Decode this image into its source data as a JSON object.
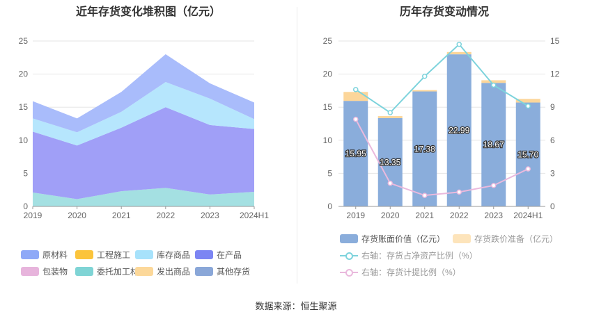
{
  "left_chart": {
    "title": "近年存货变化堆积图（亿元）",
    "legend": [
      {
        "label": "原材料",
        "color": "#8fa9f7"
      },
      {
        "label": "工程施工",
        "color": "#fbc43c"
      },
      {
        "label": "库存商品",
        "color": "#a7e2fb"
      },
      {
        "label": "在产品",
        "color": "#7c85f3"
      },
      {
        "label": "包装物",
        "color": "#e7b4dc"
      },
      {
        "label": "委托加工材料",
        "color": "#7fd4d5"
      },
      {
        "label": "发出商品",
        "color": "#fcd89a"
      },
      {
        "label": "其他存货",
        "color": "#8aa7d8"
      }
    ]
  },
  "right_chart": {
    "title": "历年存货变动情况",
    "legend": [
      {
        "label": "存货账面价值（亿元）",
        "color": "#8aaddb",
        "kind": "bar"
      },
      {
        "label": "存货跌价准备（亿元）",
        "color": "#fde4bb",
        "kind": "bar"
      },
      {
        "label": "右轴：存货占净资产比例（%）",
        "color": "#7dd3dc",
        "kind": "line"
      },
      {
        "label": "右轴：存货计提比例（%）",
        "color": "#eab9dd",
        "kind": "line"
      }
    ]
  },
  "source": "数据来源：恒生聚源",
  "chart_data": [
    {
      "type": "area",
      "title": "近年存货变化堆积图（亿元）",
      "x": [
        "2019",
        "2020",
        "2021",
        "2022",
        "2023",
        "2024H1"
      ],
      "ylim": [
        0,
        25
      ],
      "yticks": [
        0,
        5,
        10,
        15,
        20,
        25
      ],
      "stacked": true,
      "series": [
        {
          "name": "委托加工材料",
          "color": "#a4e0e2",
          "values": [
            2.1,
            1.1,
            2.3,
            2.8,
            1.8,
            2.2
          ]
        },
        {
          "name": "在产品",
          "color": "#a09ff7",
          "values": [
            9.2,
            8.1,
            9.6,
            12.2,
            10.5,
            9.5
          ]
        },
        {
          "name": "库存商品",
          "color": "#b6e6fd",
          "values": [
            2.0,
            2.0,
            2.4,
            3.8,
            4.0,
            1.5
          ]
        },
        {
          "name": "原材料",
          "color": "#a9bcfb",
          "values": [
            2.6,
            2.1,
            3.0,
            4.2,
            2.3,
            2.5
          ]
        }
      ]
    },
    {
      "type": "bar",
      "title": "历年存货变动情况",
      "categories": [
        "2019",
        "2020",
        "2021",
        "2022",
        "2023",
        "2024H1"
      ],
      "ylim": [
        0,
        25
      ],
      "yticks": [
        0,
        5,
        10,
        15,
        20,
        25
      ],
      "y2lim": [
        0,
        15
      ],
      "y2ticks": [
        0,
        3,
        6,
        9,
        12,
        15
      ],
      "series": [
        {
          "name": "存货账面价值（亿元）",
          "axis": "left",
          "values": [
            15.95,
            13.35,
            17.38,
            22.99,
            18.67,
            15.7
          ],
          "labels": [
            "15.95",
            "13.35",
            "17.38",
            "22.99",
            "18.67",
            "15.70"
          ]
        },
        {
          "name": "存货跌价准备（亿元）",
          "axis": "left",
          "values": [
            1.35,
            0.3,
            0.2,
            0.35,
            0.4,
            0.55
          ]
        },
        {
          "name": "右轴：存货占净资产比例（%）",
          "axis": "right",
          "type": "line",
          "values": [
            10.6,
            8.5,
            11.8,
            14.7,
            11.0,
            9.1
          ]
        },
        {
          "name": "右轴：存货计提比例（%）",
          "axis": "right",
          "type": "line",
          "values": [
            7.9,
            2.1,
            1.0,
            1.3,
            1.9,
            3.4
          ]
        }
      ]
    }
  ]
}
